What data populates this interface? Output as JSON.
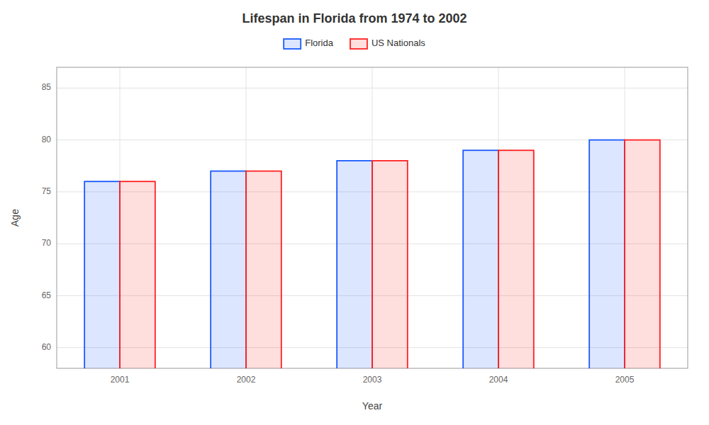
{
  "chart_data": {
    "type": "bar",
    "title": "Lifespan in Florida from 1974 to 2002",
    "xlabel": "Year",
    "ylabel": "Age",
    "categories": [
      "2001",
      "2002",
      "2003",
      "2004",
      "2005"
    ],
    "series": [
      {
        "name": "Florida",
        "color": "#1a5aff",
        "values": [
          76,
          77,
          78,
          79,
          80
        ]
      },
      {
        "name": "US Nationals",
        "color": "#ff2222",
        "values": [
          76,
          77,
          78,
          79,
          80
        ]
      }
    ],
    "ylim": [
      58,
      87
    ],
    "yticks": [
      60,
      65,
      70,
      75,
      80,
      85
    ],
    "grid": true,
    "legend": "top"
  }
}
